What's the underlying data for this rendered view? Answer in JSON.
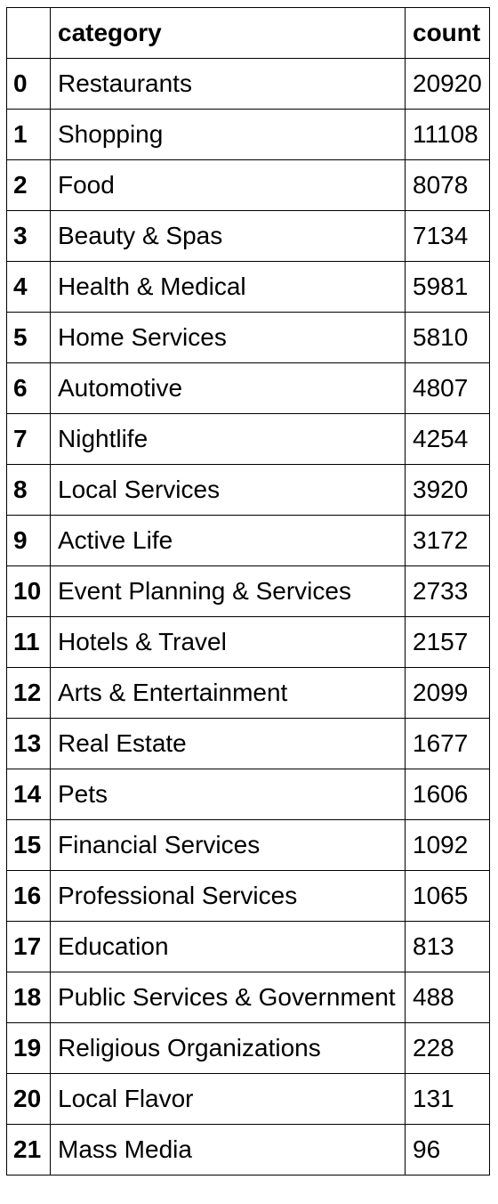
{
  "table": {
    "columns": {
      "index": "",
      "category": "category",
      "count": "count"
    },
    "rows": [
      {
        "index": "0",
        "category": "Restaurants",
        "count": "20920"
      },
      {
        "index": "1",
        "category": "Shopping",
        "count": "11108"
      },
      {
        "index": "2",
        "category": "Food",
        "count": "8078"
      },
      {
        "index": "3",
        "category": "Beauty & Spas",
        "count": "7134"
      },
      {
        "index": "4",
        "category": "Health & Medical",
        "count": "5981"
      },
      {
        "index": "5",
        "category": "Home Services",
        "count": "5810"
      },
      {
        "index": "6",
        "category": "Automotive",
        "count": "4807"
      },
      {
        "index": "7",
        "category": "Nightlife",
        "count": "4254"
      },
      {
        "index": "8",
        "category": "Local Services",
        "count": "3920"
      },
      {
        "index": "9",
        "category": "Active Life",
        "count": "3172"
      },
      {
        "index": "10",
        "category": "Event Planning & Services",
        "count": "2733"
      },
      {
        "index": "11",
        "category": "Hotels & Travel",
        "count": "2157"
      },
      {
        "index": "12",
        "category": "Arts & Entertainment",
        "count": "2099"
      },
      {
        "index": "13",
        "category": "Real Estate",
        "count": "1677"
      },
      {
        "index": "14",
        "category": "Pets",
        "count": "1606"
      },
      {
        "index": "15",
        "category": "Financial Services",
        "count": "1092"
      },
      {
        "index": "16",
        "category": "Professional Services",
        "count": "1065"
      },
      {
        "index": "17",
        "category": "Education",
        "count": "813"
      },
      {
        "index": "18",
        "category": "Public Services & Government",
        "count": "488"
      },
      {
        "index": "19",
        "category": "Religious Organizations",
        "count": "228"
      },
      {
        "index": "20",
        "category": "Local Flavor",
        "count": "131"
      },
      {
        "index": "21",
        "category": "Mass Media",
        "count": "96"
      }
    ]
  }
}
